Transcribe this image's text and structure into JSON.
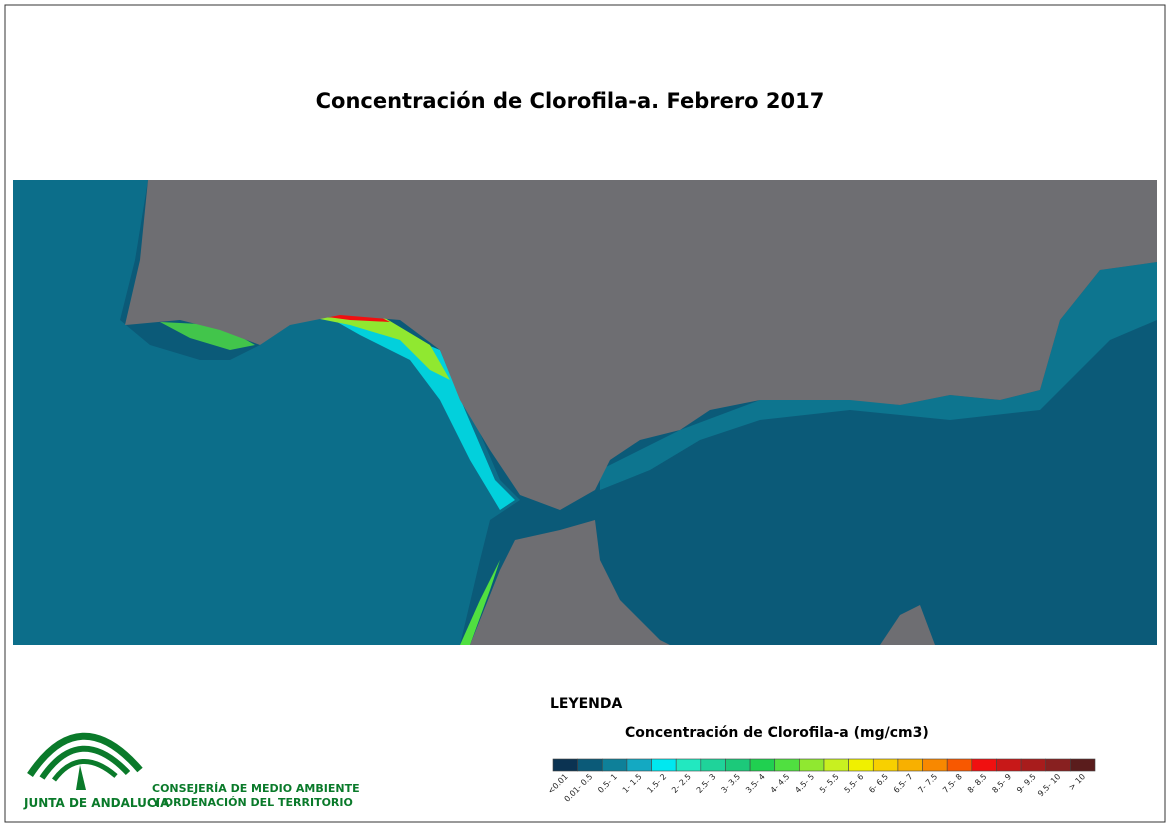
{
  "title": "Concentración de Clorofila-a. Febrero 2017",
  "legend": {
    "heading": "LEYENDA",
    "title": "Concentración de Clorofila-a (mg/cm3)",
    "items": [
      {
        "label": "<0.01",
        "color": "#0b3352"
      },
      {
        "label": "0.01- 0.5",
        "color": "#0b5a78"
      },
      {
        "label": "0.5- 1",
        "color": "#0e8099"
      },
      {
        "label": "1- 1.5",
        "color": "#14a9c2"
      },
      {
        "label": "1.5- 2",
        "color": "#00e8f0"
      },
      {
        "label": "2- 2.5",
        "color": "#22e8c0"
      },
      {
        "label": "2.5- 3",
        "color": "#1fd39a"
      },
      {
        "label": "3- 3.5",
        "color": "#1cc97a"
      },
      {
        "label": "3.5- 4",
        "color": "#20d050"
      },
      {
        "label": "4- 4.5",
        "color": "#50e040"
      },
      {
        "label": "4.5- 5",
        "color": "#90e830"
      },
      {
        "label": "5- 5.5",
        "color": "#c8f020"
      },
      {
        "label": "5.5- 6",
        "color": "#f0f000"
      },
      {
        "label": "6- 6.5",
        "color": "#f8d000"
      },
      {
        "label": "6.5- 7",
        "color": "#f8b000"
      },
      {
        "label": "7- 7.5",
        "color": "#f88800"
      },
      {
        "label": "7.5- 8",
        "color": "#f85800"
      },
      {
        "label": "8- 8.5",
        "color": "#f01010"
      },
      {
        "label": "8.5- 9",
        "color": "#c81818"
      },
      {
        "label": "9- 9.5",
        "color": "#a81c1c"
      },
      {
        "label": "9.5- 10",
        "color": "#882020"
      },
      {
        "label": "> 10",
        "color": "#5a1c1c"
      }
    ]
  },
  "logo": {
    "name": "JUNTA DE ANDALUCIA",
    "line1": "CONSEJERÍA DE MEDIO AMBIENTE",
    "line2": "Y ORDENACIÓN DEL TERRITORIO"
  }
}
